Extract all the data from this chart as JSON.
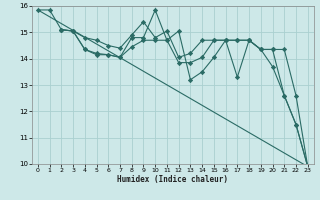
{
  "xlabel": "Humidex (Indice chaleur)",
  "ylabel": "",
  "bg_color": "#cde8e8",
  "grid_color": "#aad0d0",
  "line_color": "#2a6b65",
  "xlim": [
    -0.5,
    23.5
  ],
  "ylim": [
    10,
    16
  ],
  "xticks": [
    0,
    1,
    2,
    3,
    4,
    5,
    6,
    7,
    8,
    9,
    10,
    11,
    12,
    13,
    14,
    15,
    16,
    17,
    18,
    19,
    20,
    21,
    22,
    23
  ],
  "yticks": [
    10,
    11,
    12,
    13,
    14,
    15,
    16
  ],
  "series": [
    {
      "x": [
        0,
        1,
        2,
        3,
        4,
        5,
        6,
        7,
        8,
        9,
        10,
        11,
        12,
        13,
        14,
        15,
        16,
        17,
        18,
        19,
        20,
        21,
        22,
        23
      ],
      "y": [
        15.85,
        15.85,
        15.1,
        15.05,
        14.35,
        14.15,
        14.15,
        14.05,
        14.8,
        14.8,
        15.85,
        14.7,
        15.05,
        13.2,
        13.5,
        14.05,
        14.7,
        13.3,
        14.7,
        14.35,
        13.7,
        12.6,
        11.5,
        9.9
      ],
      "markers": true
    },
    {
      "x": [
        2,
        3,
        4,
        5,
        6,
        7,
        8,
        9,
        10,
        11,
        12,
        13,
        14,
        15,
        16,
        17,
        18,
        19,
        20,
        21,
        22,
        23
      ],
      "y": [
        15.1,
        15.05,
        14.8,
        14.7,
        14.5,
        14.4,
        14.9,
        15.4,
        14.8,
        15.05,
        14.05,
        14.2,
        14.7,
        14.7,
        14.7,
        14.7,
        14.7,
        14.35,
        14.35,
        14.35,
        12.6,
        9.9
      ],
      "markers": true
    },
    {
      "x": [
        2,
        3,
        4,
        5,
        6,
        7,
        8,
        9,
        10,
        11,
        12,
        13,
        14,
        15,
        16,
        17,
        18,
        19,
        20,
        21,
        22,
        23
      ],
      "y": [
        15.1,
        15.05,
        14.35,
        14.2,
        14.15,
        14.05,
        14.45,
        14.7,
        14.7,
        14.7,
        13.85,
        13.85,
        14.05,
        14.7,
        14.7,
        14.7,
        14.7,
        14.35,
        14.35,
        12.6,
        11.5,
        9.9
      ],
      "markers": true
    },
    {
      "x": [
        0,
        23
      ],
      "y": [
        15.85,
        9.9
      ],
      "markers": false
    }
  ]
}
